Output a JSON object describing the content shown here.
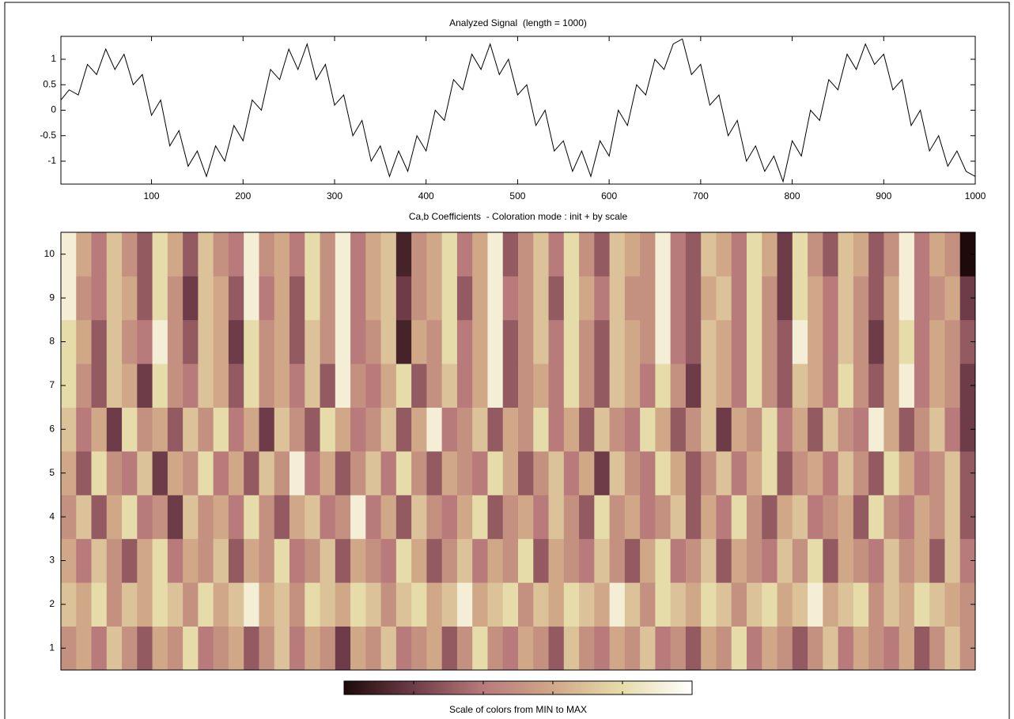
{
  "chart_data": [
    {
      "type": "line",
      "title": "Analyzed Signal  (length = 1000)",
      "color": "#000000",
      "x": [
        1,
        10,
        20,
        30,
        40,
        50,
        60,
        70,
        80,
        90,
        100,
        110,
        120,
        130,
        140,
        150,
        160,
        170,
        180,
        190,
        200,
        210,
        220,
        230,
        240,
        250,
        260,
        270,
        280,
        290,
        300,
        310,
        320,
        330,
        340,
        350,
        360,
        370,
        380,
        390,
        400,
        410,
        420,
        430,
        440,
        450,
        460,
        470,
        480,
        490,
        500,
        510,
        520,
        530,
        540,
        550,
        560,
        570,
        580,
        590,
        600,
        610,
        620,
        630,
        640,
        650,
        660,
        670,
        680,
        690,
        700,
        710,
        720,
        730,
        740,
        750,
        760,
        770,
        780,
        790,
        800,
        810,
        820,
        830,
        840,
        850,
        860,
        870,
        880,
        890,
        900,
        910,
        920,
        930,
        940,
        950,
        960,
        970,
        980,
        990,
        1000
      ],
      "values": [
        0.2,
        0.4,
        0.3,
        0.9,
        0.7,
        1.2,
        0.8,
        1.1,
        0.5,
        0.7,
        -0.1,
        0.2,
        -0.7,
        -0.4,
        -1.1,
        -0.8,
        -1.3,
        -0.7,
        -1.0,
        -0.3,
        -0.6,
        0.2,
        0.0,
        0.8,
        0.6,
        1.2,
        0.8,
        1.3,
        0.6,
        0.9,
        0.1,
        0.3,
        -0.5,
        -0.2,
        -1.0,
        -0.7,
        -1.3,
        -0.8,
        -1.2,
        -0.5,
        -0.8,
        0.0,
        -0.2,
        0.6,
        0.4,
        1.1,
        0.8,
        1.3,
        0.7,
        1.0,
        0.3,
        0.5,
        -0.3,
        0.0,
        -0.8,
        -0.6,
        -1.2,
        -0.8,
        -1.3,
        -0.6,
        -0.9,
        0.0,
        -0.3,
        0.5,
        0.3,
        1.0,
        0.8,
        1.3,
        1.4,
        0.7,
        0.9,
        0.1,
        0.3,
        -0.5,
        -0.2,
        -1.0,
        -0.7,
        -1.2,
        -0.9,
        -1.4,
        -0.6,
        -0.9,
        0.0,
        -0.2,
        0.6,
        0.4,
        1.1,
        0.8,
        1.3,
        0.9,
        1.1,
        0.4,
        0.6,
        -0.3,
        0.0,
        -0.8,
        -0.5,
        -1.1,
        -0.8,
        -1.2,
        -1.3
      ],
      "xlim": [
        1,
        1000
      ],
      "xticks": [
        100,
        200,
        300,
        400,
        500,
        600,
        700,
        800,
        900,
        1000
      ],
      "ylim": [
        -1.45,
        1.45
      ],
      "yticks": [
        -1,
        -0.5,
        0,
        0.5,
        1
      ]
    },
    {
      "type": "heatmap",
      "title": "Ca,b Coefficients  - Coloration mode : init + by scale",
      "y": [
        1,
        2,
        3,
        4,
        5,
        6,
        7,
        8,
        9,
        10
      ],
      "values": [
        [
          0.5,
          0.6,
          0.4,
          0.7,
          0.5,
          0.3,
          0.6,
          0.5,
          0.8,
          0.4,
          0.5,
          0.6,
          0.3,
          0.5,
          0.7,
          0.4,
          0.6,
          0.5,
          0.2,
          0.6,
          0.5,
          0.7,
          0.4,
          0.5,
          0.6,
          0.3,
          0.5,
          0.8,
          0.5,
          0.4,
          0.6,
          0.5,
          0.3,
          0.7,
          0.5,
          0.4,
          0.6,
          0.5,
          0.7,
          0.4,
          0.5,
          0.3,
          0.6,
          0.5,
          0.8,
          0.4,
          0.6,
          0.5,
          0.3,
          0.5,
          0.7,
          0.4,
          0.6,
          0.5,
          0.4,
          0.6,
          0.3,
          0.5,
          0.7,
          0.5
        ],
        [
          0.7,
          0.6,
          0.8,
          0.5,
          0.7,
          0.6,
          0.8,
          0.7,
          0.5,
          0.8,
          0.6,
          0.7,
          0.9,
          0.6,
          0.7,
          0.5,
          0.8,
          0.7,
          0.6,
          0.8,
          0.7,
          0.5,
          0.7,
          0.8,
          0.6,
          0.7,
          0.9,
          0.6,
          0.7,
          0.8,
          0.5,
          0.7,
          0.6,
          0.8,
          0.7,
          0.6,
          0.9,
          0.7,
          0.5,
          0.8,
          0.7,
          0.6,
          0.8,
          0.7,
          0.5,
          0.7,
          0.8,
          0.6,
          0.7,
          0.9,
          0.6,
          0.7,
          0.8,
          0.5,
          0.7,
          0.6,
          0.8,
          0.7,
          0.6,
          0.5
        ],
        [
          0.6,
          0.4,
          0.7,
          0.5,
          0.3,
          0.6,
          0.8,
          0.4,
          0.6,
          0.5,
          0.7,
          0.3,
          0.6,
          0.5,
          0.8,
          0.4,
          0.5,
          0.7,
          0.3,
          0.6,
          0.5,
          0.4,
          0.8,
          0.6,
          0.3,
          0.5,
          0.7,
          0.4,
          0.6,
          0.5,
          0.8,
          0.3,
          0.6,
          0.5,
          0.4,
          0.7,
          0.5,
          0.3,
          0.6,
          0.8,
          0.4,
          0.5,
          0.7,
          0.3,
          0.6,
          0.5,
          0.4,
          0.7,
          0.5,
          0.8,
          0.3,
          0.6,
          0.5,
          0.4,
          0.7,
          0.5,
          0.6,
          0.3,
          0.7,
          0.4
        ],
        [
          0.5,
          0.7,
          0.3,
          0.6,
          0.8,
          0.4,
          0.5,
          0.2,
          0.7,
          0.5,
          0.6,
          0.4,
          0.8,
          0.5,
          0.3,
          0.6,
          0.7,
          0.4,
          0.5,
          0.9,
          0.4,
          0.6,
          0.3,
          0.7,
          0.5,
          0.4,
          0.6,
          0.8,
          0.3,
          0.5,
          0.6,
          0.4,
          0.7,
          0.5,
          0.3,
          0.8,
          0.5,
          0.6,
          0.4,
          0.5,
          0.7,
          0.3,
          0.6,
          0.4,
          0.8,
          0.5,
          0.3,
          0.6,
          0.7,
          0.4,
          0.5,
          0.6,
          0.3,
          0.8,
          0.5,
          0.4,
          0.6,
          0.5,
          0.7,
          0.3
        ],
        [
          0.6,
          0.3,
          0.8,
          0.5,
          0.4,
          0.7,
          0.2,
          0.6,
          0.5,
          0.8,
          0.4,
          0.6,
          0.3,
          0.7,
          0.5,
          0.9,
          0.4,
          0.6,
          0.3,
          0.5,
          0.7,
          0.4,
          0.8,
          0.5,
          0.3,
          0.6,
          0.5,
          0.4,
          0.8,
          0.6,
          0.3,
          0.5,
          0.7,
          0.4,
          0.6,
          0.2,
          0.7,
          0.5,
          0.4,
          0.8,
          0.6,
          0.3,
          0.5,
          0.7,
          0.4,
          0.6,
          0.8,
          0.3,
          0.5,
          0.6,
          0.4,
          0.7,
          0.5,
          0.3,
          0.8,
          0.6,
          0.4,
          0.5,
          0.7,
          0.3
        ],
        [
          0.7,
          0.4,
          0.6,
          0.2,
          0.8,
          0.5,
          0.6,
          0.3,
          0.7,
          0.5,
          0.8,
          0.4,
          0.6,
          0.2,
          0.7,
          0.5,
          0.3,
          0.8,
          0.6,
          0.4,
          0.5,
          0.7,
          0.3,
          0.6,
          0.9,
          0.4,
          0.5,
          0.7,
          0.3,
          0.6,
          0.5,
          0.8,
          0.4,
          0.6,
          0.3,
          0.7,
          0.5,
          0.4,
          0.8,
          0.6,
          0.3,
          0.5,
          0.7,
          0.2,
          0.6,
          0.5,
          0.8,
          0.4,
          0.6,
          0.3,
          0.7,
          0.5,
          0.4,
          0.9,
          0.6,
          0.3,
          0.5,
          0.7,
          0.4,
          0.2
        ],
        [
          0.8,
          0.5,
          0.3,
          0.7,
          0.6,
          0.2,
          0.8,
          0.5,
          0.4,
          0.7,
          0.6,
          0.3,
          0.8,
          0.5,
          0.6,
          0.4,
          0.7,
          0.3,
          0.9,
          0.5,
          0.4,
          0.6,
          0.8,
          0.3,
          0.5,
          0.7,
          0.4,
          0.6,
          0.9,
          0.3,
          0.5,
          0.6,
          0.4,
          0.8,
          0.5,
          0.3,
          0.7,
          0.6,
          0.4,
          0.8,
          0.5,
          0.2,
          0.7,
          0.6,
          0.4,
          0.8,
          0.5,
          0.3,
          0.7,
          0.6,
          0.4,
          0.8,
          0.5,
          0.3,
          0.6,
          0.9,
          0.4,
          0.6,
          0.5,
          0.2
        ],
        [
          0.8,
          0.6,
          0.3,
          0.7,
          0.5,
          0.4,
          0.9,
          0.5,
          0.3,
          0.7,
          0.6,
          0.2,
          0.8,
          0.5,
          0.6,
          0.3,
          0.7,
          0.5,
          0.9,
          0.4,
          0.5,
          0.7,
          0.1,
          0.6,
          0.5,
          0.8,
          0.4,
          0.6,
          0.9,
          0.3,
          0.5,
          0.7,
          0.4,
          0.8,
          0.5,
          0.3,
          0.7,
          0.6,
          0.5,
          0.9,
          0.4,
          0.3,
          0.7,
          0.6,
          0.4,
          0.8,
          0.5,
          0.3,
          0.9,
          0.6,
          0.4,
          0.7,
          0.5,
          0.2,
          0.6,
          0.8,
          0.4,
          0.6,
          0.5,
          0.3
        ],
        [
          0.9,
          0.5,
          0.4,
          0.7,
          0.6,
          0.3,
          0.8,
          0.5,
          0.2,
          0.7,
          0.6,
          0.3,
          0.9,
          0.4,
          0.6,
          0.3,
          0.8,
          0.5,
          0.9,
          0.4,
          0.6,
          0.7,
          0.2,
          0.5,
          0.6,
          0.8,
          0.3,
          0.6,
          0.9,
          0.4,
          0.5,
          0.7,
          0.3,
          0.8,
          0.6,
          0.4,
          0.7,
          0.5,
          0.5,
          0.9,
          0.4,
          0.3,
          0.6,
          0.7,
          0.4,
          0.8,
          0.5,
          0.2,
          0.8,
          0.6,
          0.4,
          0.7,
          0.5,
          0.3,
          0.6,
          0.9,
          0.4,
          0.5,
          0.6,
          0.2
        ],
        [
          0.9,
          0.6,
          0.4,
          0.7,
          0.5,
          0.3,
          0.8,
          0.6,
          0.3,
          0.7,
          0.5,
          0.4,
          0.9,
          0.5,
          0.6,
          0.4,
          0.8,
          0.5,
          0.9,
          0.4,
          0.6,
          0.7,
          0.1,
          0.5,
          0.6,
          0.8,
          0.4,
          0.6,
          0.9,
          0.3,
          0.5,
          0.7,
          0.4,
          0.8,
          0.5,
          0.3,
          0.7,
          0.6,
          0.5,
          0.9,
          0.4,
          0.3,
          0.7,
          0.6,
          0.4,
          0.8,
          0.6,
          0.2,
          0.8,
          0.5,
          0.3,
          0.7,
          0.6,
          0.3,
          0.5,
          0.9,
          0.4,
          0.6,
          0.5,
          0.0
        ]
      ],
      "ylim": [
        0.5,
        10.5
      ],
      "yticks": [
        1,
        2,
        3,
        4,
        5,
        6,
        7,
        8,
        9,
        10
      ],
      "clim": [
        0,
        1
      ],
      "colormap": [
        "#1e0a0a",
        "#6e3c48",
        "#b87a7a",
        "#d0a888",
        "#e6dcaa",
        "#ffffff"
      ],
      "colorbar": {
        "label": "Scale of colors from MIN to MAX",
        "ticks": [
          0,
          0.2,
          0.4,
          0.6,
          0.8,
          1
        ]
      }
    }
  ]
}
